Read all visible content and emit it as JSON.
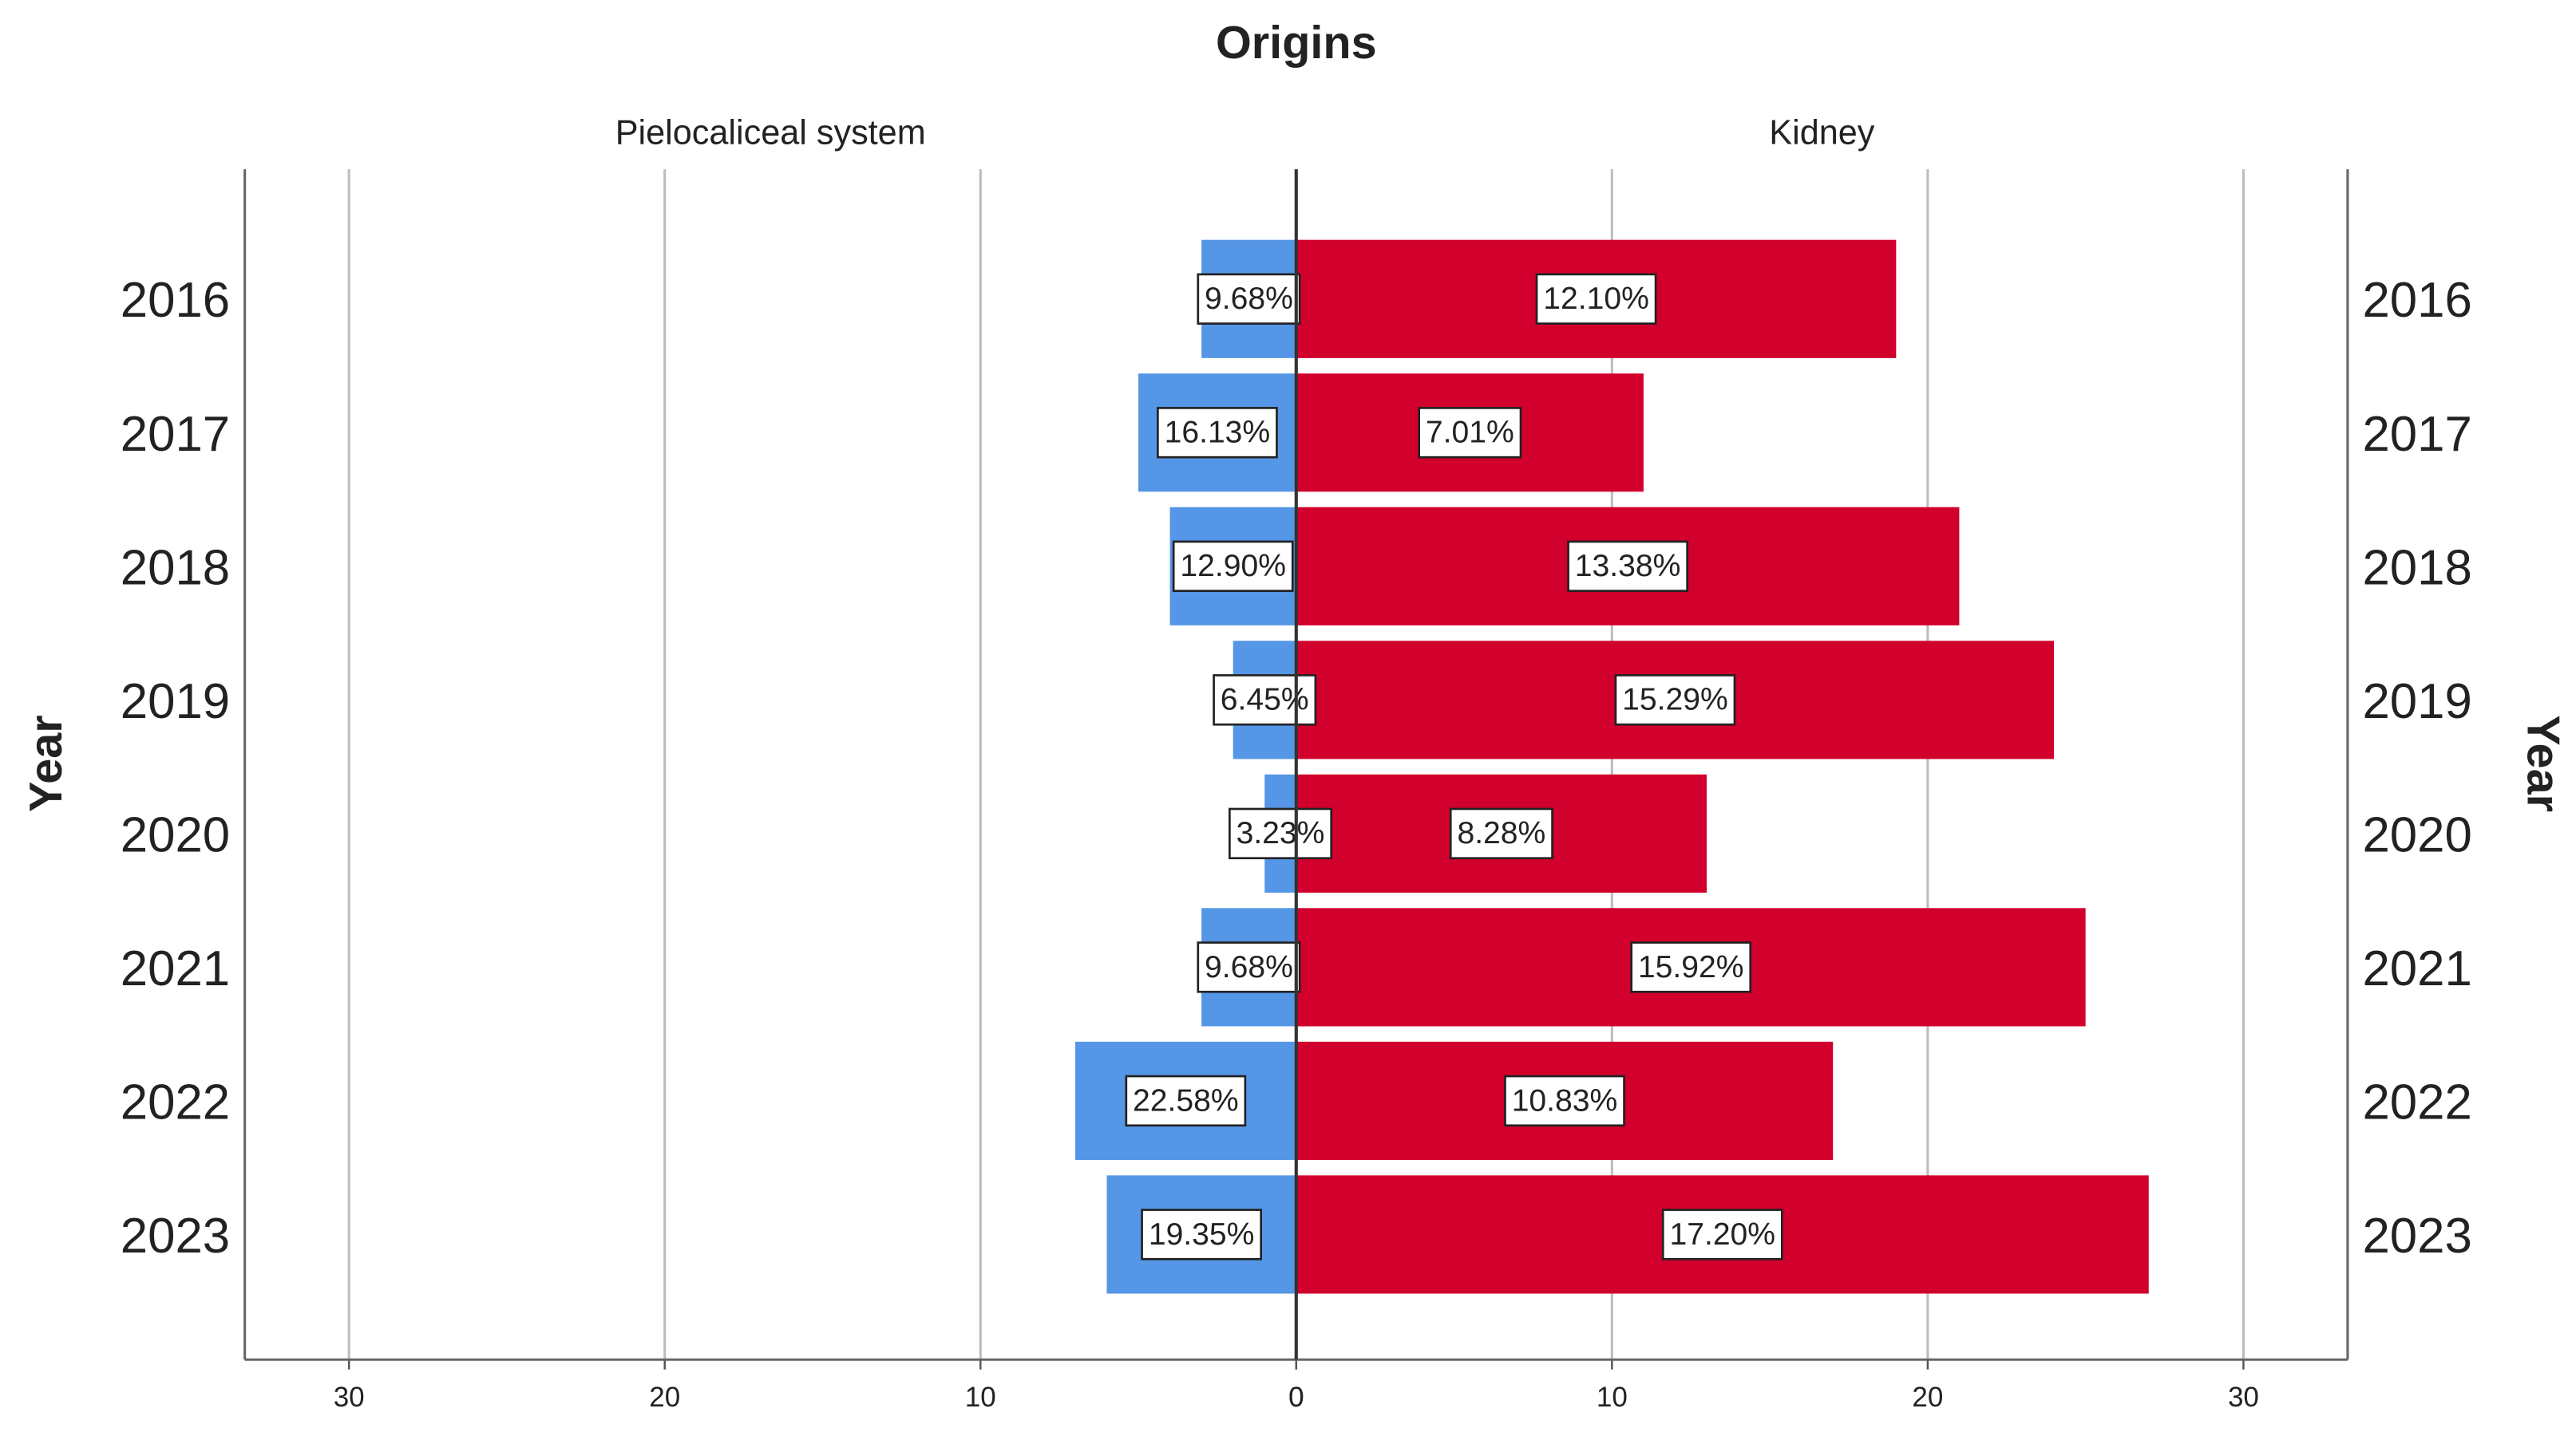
{
  "chart_data": {
    "type": "pyramid",
    "title": "Origins",
    "y_label": "Year",
    "categories": [
      "2016",
      "2017",
      "2018",
      "2019",
      "2020",
      "2021",
      "2022",
      "2023"
    ],
    "series": [
      {
        "name": "Pielocaliceal system",
        "color": "#5596e6",
        "side": "left",
        "values": [
          3,
          5,
          4,
          2,
          1,
          3,
          7,
          6
        ],
        "value_labels": [
          "9.68%",
          "16.13%",
          "12.90%",
          "6.45%",
          "3.23%",
          "9.68%",
          "22.58%",
          "19.35%"
        ]
      },
      {
        "name": "Kidney",
        "color": "#d1002c",
        "side": "right",
        "values": [
          19,
          11,
          21,
          24,
          13,
          25,
          17,
          27
        ],
        "value_labels": [
          "12.10%",
          "7.01%",
          "13.38%",
          "15.29%",
          "8.28%",
          "15.92%",
          "10.83%",
          "17.20%"
        ]
      }
    ],
    "xlim": [
      0,
      33.3
    ],
    "xticks": [
      0,
      10,
      20,
      30
    ],
    "grid": true
  }
}
